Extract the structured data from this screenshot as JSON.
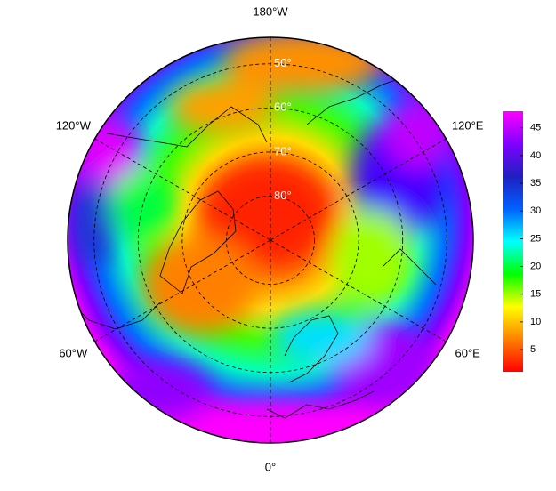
{
  "map": {
    "latlim": [
      44,
      90
    ],
    "longitude_labels": [
      {
        "value": 180,
        "label": "180°W"
      },
      {
        "value": 120,
        "label": "120°E"
      },
      {
        "value": 60,
        "label": "60°E"
      },
      {
        "value": 0,
        "label": "0°"
      },
      {
        "value": -60,
        "label": "60°W"
      },
      {
        "value": -120,
        "label": "120°W"
      }
    ],
    "latitude_labels": [
      {
        "value": 50,
        "label": "50°"
      },
      {
        "value": 60,
        "label": "60°"
      },
      {
        "value": 70,
        "label": "70°"
      },
      {
        "value": 80,
        "label": "80°"
      }
    ],
    "colorbar": {
      "lim": [
        1,
        48
      ],
      "ticks": [
        5,
        10,
        15,
        20,
        25,
        30,
        35,
        40,
        45
      ],
      "colors": [
        "#ff0000",
        "#ff8000",
        "#ffff00",
        "#00ff00",
        "#00ffff",
        "#0060ff",
        "#2020c0",
        "#8000ff",
        "#ff00ff"
      ]
    }
  }
}
